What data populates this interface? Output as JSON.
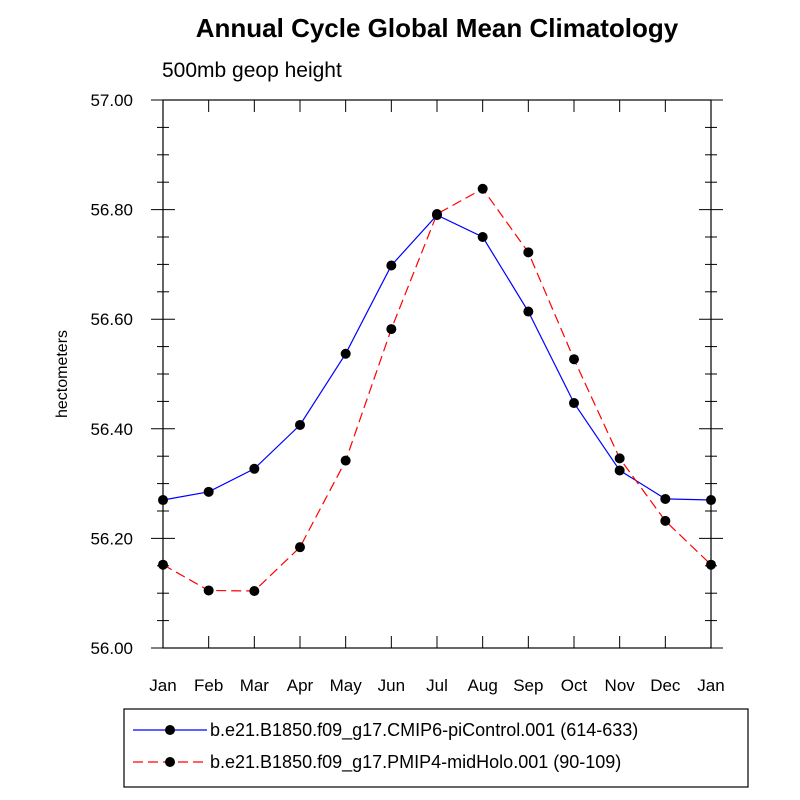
{
  "chart_data": {
    "type": "line",
    "title": "Annual Cycle Global Mean Climatology",
    "subtitle": "500mb geop height",
    "xlabel": "",
    "ylabel": "hectometers",
    "categories": [
      "Jan",
      "Feb",
      "Mar",
      "Apr",
      "May",
      "Jun",
      "Jul",
      "Aug",
      "Sep",
      "Oct",
      "Nov",
      "Dec",
      "Jan"
    ],
    "ylim": [
      56.0,
      57.0
    ],
    "yticks": [
      "56.00",
      "56.20",
      "56.40",
      "56.60",
      "56.80",
      "57.00"
    ],
    "grid": false,
    "legend_position": "bottom",
    "series": [
      {
        "name": "b.e21.B1850.f09_g17.CMIP6-piControl.001 (614-633)",
        "color": "#0000ff",
        "line_style": "solid",
        "marker": "filled-circle",
        "marker_color": "#000000",
        "values": [
          56.27,
          56.285,
          56.327,
          56.407,
          56.537,
          56.698,
          56.79,
          56.75,
          56.614,
          56.447,
          56.324,
          56.272,
          56.27
        ]
      },
      {
        "name": "b.e21.B1850.f09_g17.PMIP4-midHolo.001 (90-109)",
        "color": "#ff0000",
        "line_style": "dashed",
        "marker": "filled-circle",
        "marker_color": "#000000",
        "values": [
          56.152,
          56.105,
          56.104,
          56.184,
          56.342,
          56.582,
          56.792,
          56.838,
          56.722,
          56.527,
          56.346,
          56.232,
          56.152
        ]
      }
    ]
  }
}
